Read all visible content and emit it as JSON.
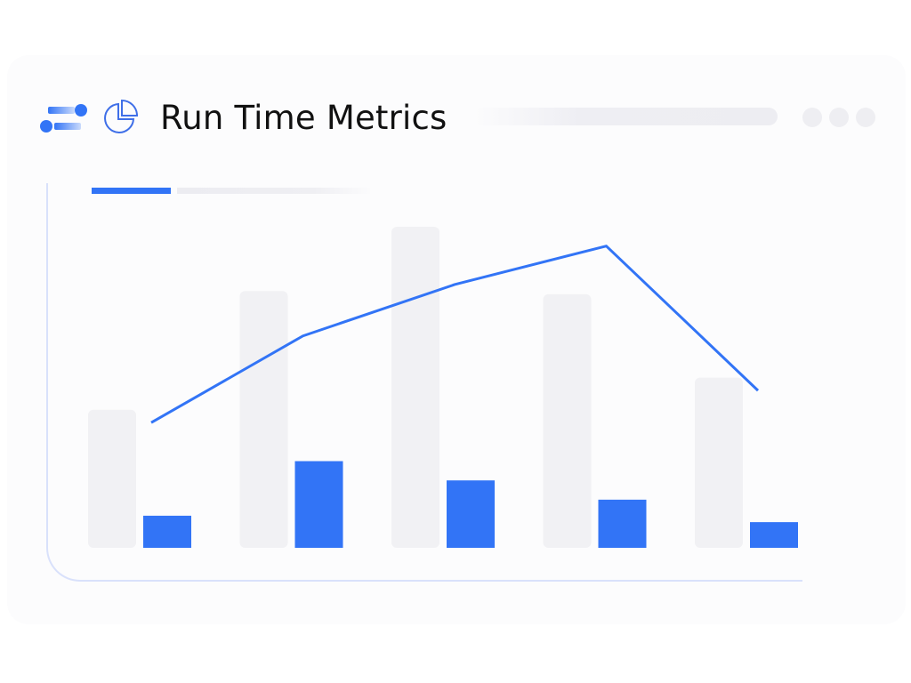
{
  "header": {
    "title": "Run Time Metrics",
    "brand_icon": "brand-logo-icon",
    "pie_icon": "pie-chart-icon",
    "window_controls": [
      "dot",
      "dot",
      "dot"
    ]
  },
  "colors": {
    "accent": "#3274f6",
    "muted_bar": "#f1f1f4",
    "frame": "#d9e1fb",
    "text": "#111111"
  },
  "chart_data": {
    "type": "bar",
    "title": "Run Time Metrics",
    "xlabel": "",
    "ylabel": "",
    "categories": [
      "",
      "",
      "",
      "",
      ""
    ],
    "ylim": [
      0,
      100
    ],
    "grid": false,
    "series": [
      {
        "values": [
          43,
          80,
          100,
          79,
          53
        ],
        "kind": "bar",
        "color": "#f1f1f4"
      },
      {
        "values": [
          10,
          27,
          21,
          15,
          8
        ],
        "kind": "bar",
        "color": "#3274f6"
      },
      {
        "values": [
          39,
          66,
          82,
          94,
          49
        ],
        "kind": "line",
        "color": "#3274f6"
      }
    ]
  }
}
